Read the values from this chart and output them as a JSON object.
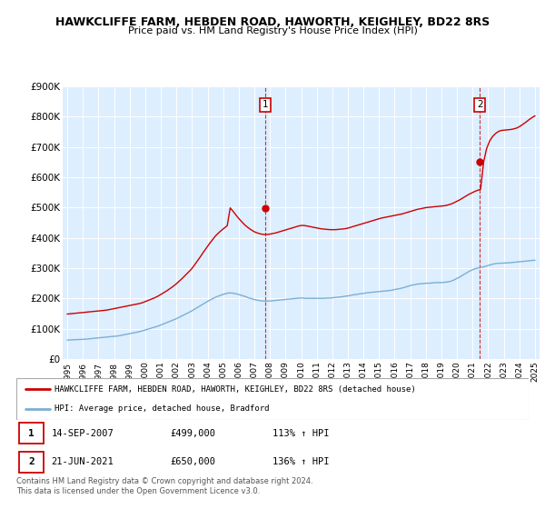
{
  "title": "HAWKCLIFFE FARM, HEBDEN ROAD, HAWORTH, KEIGHLEY, BD22 8RS",
  "subtitle": "Price paid vs. HM Land Registry's House Price Index (HPI)",
  "ylim": [
    0,
    900000
  ],
  "yticks": [
    0,
    100000,
    200000,
    300000,
    400000,
    500000,
    600000,
    700000,
    800000,
    900000
  ],
  "ytick_labels": [
    "£0",
    "£100K",
    "£200K",
    "£300K",
    "£400K",
    "£500K",
    "£600K",
    "£700K",
    "£800K",
    "£900K"
  ],
  "red_color": "#cc0000",
  "blue_color": "#7bafd4",
  "bg_color": "#ddeeff",
  "sale1_label": "1",
  "sale2_label": "2",
  "sale1_date": "14-SEP-2007",
  "sale1_price": "£499,000",
  "sale1_hpi": "113% ↑ HPI",
  "sale2_date": "21-JUN-2021",
  "sale2_price": "£650,000",
  "sale2_hpi": "136% ↑ HPI",
  "legend_red": "HAWKCLIFFE FARM, HEBDEN ROAD, HAWORTH, KEIGHLEY, BD22 8RS (detached house)",
  "legend_blue": "HPI: Average price, detached house, Bradford",
  "footer": "Contains HM Land Registry data © Crown copyright and database right 2024.\nThis data is licensed under the Open Government Licence v3.0.",
  "years": [
    "1995",
    "1996",
    "1997",
    "1998",
    "1999",
    "2000",
    "2001",
    "2002",
    "2003",
    "2004",
    "2005",
    "2006",
    "2007",
    "2008",
    "2009",
    "2010",
    "2011",
    "2012",
    "2013",
    "2014",
    "2015",
    "2016",
    "2017",
    "2018",
    "2019",
    "2020",
    "2021",
    "2022",
    "2023",
    "2024",
    "2025"
  ],
  "hpi_monthly": [
    62000,
    62500,
    63000,
    63500,
    64000,
    64500,
    65000,
    66000,
    67000,
    68000,
    69000,
    70000,
    71000,
    72000,
    73000,
    74000,
    75000,
    76000,
    78000,
    80000,
    82000,
    84000,
    86000,
    88000,
    90000,
    93000,
    96000,
    99000,
    102000,
    105000,
    108000,
    112000,
    116000,
    120000,
    124000,
    128000,
    132000,
    137000,
    142000,
    147000,
    152000,
    157000,
    163000,
    169000,
    175000,
    181000,
    187000,
    193000,
    198000,
    203000,
    207000,
    211000,
    214000,
    217000,
    218000,
    217000,
    215000,
    212000,
    209000,
    206000,
    202000,
    199000,
    196000,
    194000,
    192000,
    191000,
    191000,
    191000,
    192000,
    193000,
    194000,
    195000,
    196000,
    197000,
    198000,
    199000,
    200000,
    201000,
    201000,
    200000,
    200000,
    200000,
    200000,
    200000,
    200000,
    200000,
    201000,
    201000,
    202000,
    203000,
    204000,
    205000,
    207000,
    208000,
    210000,
    212000,
    213000,
    215000,
    216000,
    218000,
    219000,
    220000,
    221000,
    222000,
    223000,
    224000,
    225000,
    226000,
    228000,
    230000,
    232000,
    234000,
    237000,
    240000,
    243000,
    245000,
    247000,
    248000,
    249000,
    250000,
    250000,
    251000,
    252000,
    252000,
    252000,
    253000,
    254000,
    256000,
    260000,
    265000,
    270000,
    276000,
    282000,
    288000,
    293000,
    297000,
    300000,
    302000,
    304000,
    307000,
    310000,
    313000,
    315000,
    316000,
    316000,
    317000,
    317000,
    318000,
    319000,
    320000,
    321000,
    322000,
    323000,
    324000,
    325000,
    326000
  ],
  "red_monthly": [
    148000,
    149000,
    150000,
    151000,
    152000,
    153000,
    154000,
    155000,
    156000,
    157000,
    158000,
    159000,
    160000,
    161000,
    163000,
    165000,
    167000,
    169000,
    171000,
    173000,
    175000,
    177000,
    179000,
    181000,
    183000,
    186000,
    190000,
    194000,
    198000,
    202000,
    207000,
    213000,
    219000,
    225000,
    232000,
    239000,
    247000,
    256000,
    265000,
    275000,
    285000,
    295000,
    308000,
    322000,
    336000,
    351000,
    365000,
    379000,
    392000,
    405000,
    415000,
    424000,
    432000,
    440000,
    499000,
    487000,
    474000,
    462000,
    451000,
    441000,
    433000,
    426000,
    420000,
    416000,
    413000,
    411000,
    411000,
    412000,
    414000,
    416000,
    419000,
    422000,
    425000,
    428000,
    431000,
    434000,
    437000,
    440000,
    441000,
    440000,
    438000,
    436000,
    434000,
    432000,
    430000,
    429000,
    428000,
    427000,
    427000,
    427000,
    428000,
    429000,
    430000,
    432000,
    435000,
    438000,
    441000,
    444000,
    447000,
    450000,
    453000,
    456000,
    459000,
    462000,
    465000,
    467000,
    469000,
    471000,
    473000,
    475000,
    477000,
    479000,
    482000,
    485000,
    488000,
    491000,
    494000,
    496000,
    498000,
    500000,
    501000,
    502000,
    503000,
    504000,
    505000,
    506000,
    508000,
    511000,
    515000,
    520000,
    525000,
    531000,
    537000,
    543000,
    548000,
    553000,
    557000,
    560000,
    650000,
    695000,
    720000,
    735000,
    745000,
    752000,
    755000,
    756000,
    757000,
    758000,
    760000,
    763000,
    768000,
    775000,
    782000,
    790000,
    797000,
    803000
  ]
}
